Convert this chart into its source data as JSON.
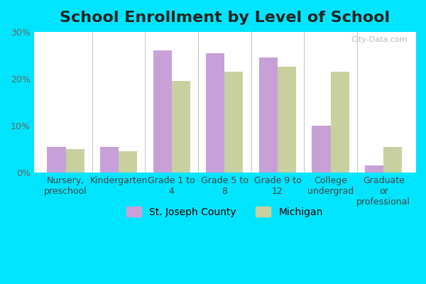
{
  "title": "School Enrollment by Level of School",
  "categories": [
    "Nursery,\npreschool",
    "Kindergarten",
    "Grade 1 to\n4",
    "Grade 5 to\n8",
    "Grade 9 to\n12",
    "College\nundergrad",
    "Graduate\nor\nprofessional"
  ],
  "st_joseph": [
    5.5,
    5.5,
    26.0,
    25.5,
    24.5,
    10.0,
    1.5
  ],
  "michigan": [
    5.0,
    4.5,
    19.5,
    21.5,
    22.5,
    21.5,
    5.5
  ],
  "color_sj": "#c8a0d8",
  "color_mi": "#c8d0a0",
  "ylim": [
    0,
    30
  ],
  "yticks": [
    0,
    10,
    20,
    30
  ],
  "ytick_labels": [
    "0%",
    "10%",
    "20%",
    "30%"
  ],
  "legend_sj": "St. Joseph County",
  "legend_mi": "Michigan",
  "bg_outer": "#00e5ff",
  "bg_inner_top": "#e8f5e0",
  "bg_inner_bottom": "#ffffff",
  "title_fontsize": 16,
  "tick_fontsize": 9,
  "legend_fontsize": 10
}
